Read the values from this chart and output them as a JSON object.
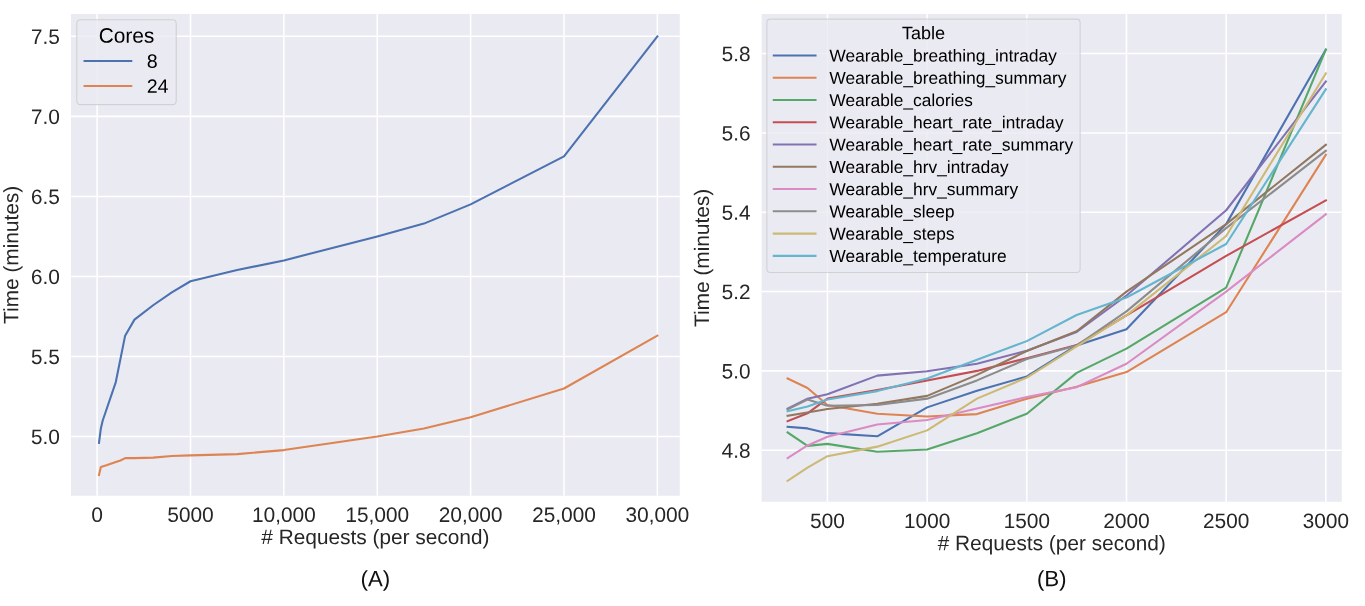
{
  "chart_data": [
    {
      "type": "line",
      "xlabel": "# Requests (per second)",
      "ylabel": "Time (minutes)",
      "legend_title": "Cores",
      "legend": "top left",
      "grid": true,
      "xlim": [
        -1400,
        31200
      ],
      "ylim": [
        4.63,
        7.64
      ],
      "xticks": [
        0,
        5000,
        {
          "value": 10000,
          "label": "10,000"
        },
        {
          "value": 15000,
          "label": "15,000"
        },
        {
          "value": 20000,
          "label": "20,000"
        },
        {
          "value": 25000,
          "label": "25,000"
        },
        {
          "value": 30000,
          "label": "30,000"
        }
      ],
      "yticks": [
        {
          "value": 5.0,
          "label": "5.0"
        },
        5.5,
        {
          "value": 6.0,
          "label": "6.0"
        },
        6.5,
        {
          "value": 7.0,
          "label": "7.0"
        },
        7.5
      ],
      "annotations": [
        "(A)"
      ],
      "series": [
        {
          "name": "8",
          "color": "#4c72b0",
          "x": [
            100,
            200,
            300,
            1000,
            1500,
            2000,
            3000,
            4000,
            5000,
            7500,
            10000,
            15000,
            17500,
            20000,
            25000,
            30000
          ],
          "values": [
            4.96,
            5.05,
            5.1,
            5.34,
            5.63,
            5.73,
            5.82,
            5.9,
            5.97,
            6.04,
            6.1,
            6.25,
            6.33,
            6.45,
            6.75,
            7.5
          ]
        },
        {
          "name": "24",
          "color": "#dd8452",
          "x": [
            100,
            200,
            500,
            1000,
            1250,
            1500,
            2000,
            3000,
            4000,
            5000,
            7500,
            10000,
            15000,
            17500,
            20000,
            25000,
            30000
          ],
          "values": [
            4.76,
            4.81,
            4.82,
            4.84,
            4.85,
            4.865,
            4.865,
            4.868,
            4.878,
            4.882,
            4.89,
            4.915,
            5.0,
            5.05,
            5.12,
            5.3,
            5.63
          ]
        }
      ]
    },
    {
      "type": "line",
      "xlabel": "# Requests (per second)",
      "ylabel": "Time (minutes)",
      "legend_title": "Table",
      "legend": "top left",
      "grid": true,
      "xlim": [
        170,
        3080
      ],
      "ylim": [
        4.67,
        5.9
      ],
      "xticks": [
        500,
        1000,
        1500,
        2000,
        2500,
        3000
      ],
      "yticks": [
        4.8,
        {
          "value": 5.0,
          "label": "5.0"
        },
        5.2,
        5.4,
        5.6,
        5.8
      ],
      "annotations": [
        "(B)"
      ],
      "x": [
        300,
        400,
        500,
        750,
        1000,
        1250,
        1500,
        1750,
        2000,
        2500,
        3000
      ],
      "series": [
        {
          "name": "Wearable_breathing_intraday",
          "color": "#4c72b0",
          "values": [
            4.859,
            4.855,
            4.843,
            4.835,
            4.908,
            4.95,
            4.986,
            5.064,
            5.105,
            5.37,
            5.81
          ]
        },
        {
          "name": "Wearable_breathing_summary",
          "color": "#dd8452",
          "values": [
            4.981,
            4.957,
            4.914,
            4.892,
            4.885,
            4.891,
            4.93,
            4.96,
            4.997,
            5.148,
            5.545
          ]
        },
        {
          "name": "Wearable_calories",
          "color": "#55a868",
          "values": [
            4.845,
            4.811,
            4.816,
            4.796,
            4.802,
            4.843,
            4.892,
            4.995,
            5.056,
            5.21,
            5.81
          ]
        },
        {
          "name": "Wearable_heart_rate_intraday",
          "color": "#c44e52",
          "values": [
            4.873,
            4.893,
            4.93,
            4.952,
            4.976,
            5.0,
            5.032,
            5.065,
            5.14,
            5.29,
            5.43
          ]
        },
        {
          "name": "Wearable_heart_rate_summary",
          "color": "#8172b3",
          "values": [
            4.905,
            4.93,
            4.941,
            4.988,
            4.999,
            5.018,
            5.051,
            5.098,
            5.19,
            5.405,
            5.73
          ]
        },
        {
          "name": "Wearable_hrv_intraday",
          "color": "#937860",
          "values": [
            4.887,
            4.895,
            4.904,
            4.917,
            4.937,
            4.99,
            5.05,
            5.1,
            5.2,
            5.37,
            5.57
          ]
        },
        {
          "name": "Wearable_hrv_summary",
          "color": "#da8bc3",
          "values": [
            4.78,
            4.812,
            4.834,
            4.865,
            4.876,
            4.905,
            4.934,
            4.959,
            5.018,
            5.2,
            5.395
          ]
        },
        {
          "name": "Wearable_sleep",
          "color": "#8c8c8c",
          "values": [
            4.903,
            4.928,
            4.912,
            4.914,
            4.93,
            4.976,
            5.03,
            5.064,
            5.15,
            5.36,
            5.555
          ]
        },
        {
          "name": "Wearable_steps",
          "color": "#ccb974",
          "values": [
            4.723,
            4.756,
            4.785,
            4.809,
            4.85,
            4.93,
            4.983,
            5.062,
            5.14,
            5.34,
            5.75
          ]
        },
        {
          "name": "Wearable_temperature",
          "color": "#64b5cd",
          "values": [
            4.898,
            4.91,
            4.928,
            4.949,
            4.981,
            5.028,
            5.075,
            5.141,
            5.185,
            5.32,
            5.71
          ]
        }
      ]
    }
  ]
}
